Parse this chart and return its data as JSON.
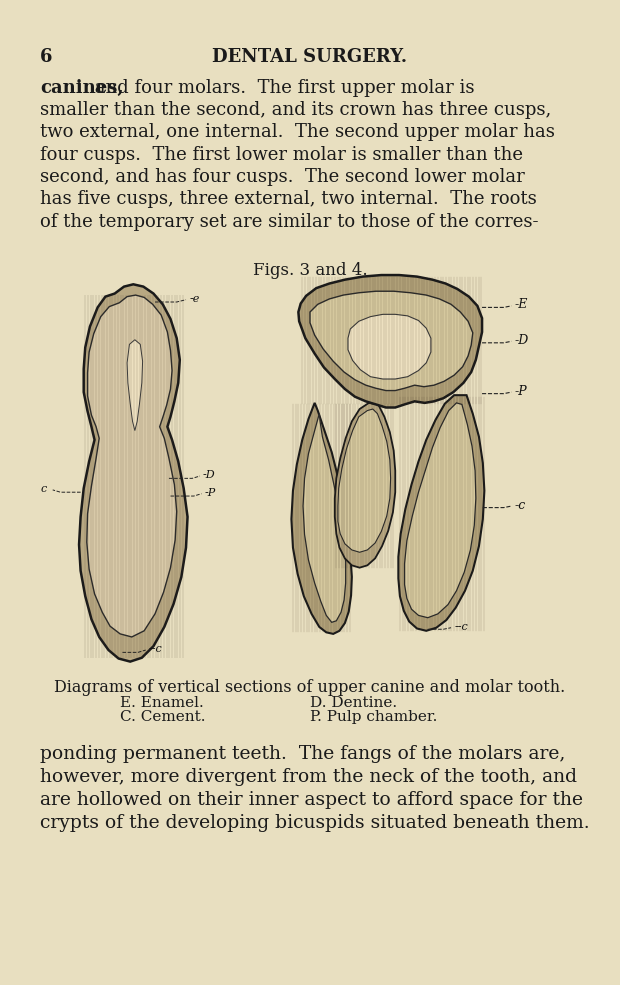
{
  "bg_color": "#e8dfc0",
  "header_number": "6",
  "header_title": "DENTAL SURGERY.",
  "top_paragraph_line1_bold": "canines,",
  "top_paragraph_line1_rest": " and four molars.  The first upper molar is",
  "top_paragraph_lines": [
    "smaller than the second, and its crown has three cusps,",
    "two external, one internal.  The second upper molar has",
    "four cusps.  The first lower molar is smaller than the",
    "second, and has four cusps.  The second lower molar",
    "has five cusps, three external, two internal.  The roots",
    "of the temporary set are similar to those of the corres-"
  ],
  "fig_caption": "Figs. 3 and 4.",
  "diagram_caption_line1": "Diagrams of vertical sections of upper canine and molar tooth.",
  "diagram_caption_e": "E. Enamel.",
  "diagram_caption_c": "C. Cement.",
  "diagram_caption_d": "D. Dentine.",
  "diagram_caption_p": "P. Pulp chamber.",
  "bottom_paragraph": [
    "ponding permanent teeth.  The fangs of the molars are,",
    "however, more divergent from the neck of the tooth, and",
    "are hollowed on their inner aspect to afford space for the",
    "crypts of the developing bicuspids situated beneath them."
  ],
  "text_color": "#1a1a1a",
  "label_e_left": "-e",
  "label_d_left": "-D",
  "label_p_left": "-P",
  "label_c_left": "c",
  "label_c_bottom_left": "--c",
  "label_e_right": "-E",
  "label_d_right": "-D",
  "label_p_right": "-P",
  "label_c_right": "-c",
  "label_c_bottom_right": "--c"
}
